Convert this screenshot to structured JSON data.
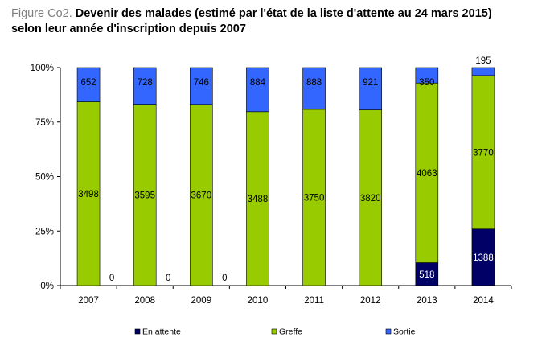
{
  "title_prefix": "Figure Co2.",
  "title_line1": " Devenir des malades (estimé par l'état de la liste d'attente au 24 mars 2015)",
  "title_line2": "selon leur année d'inscription depuis 2007",
  "chart_data": {
    "type": "bar",
    "stacked": true,
    "normalized": true,
    "categories": [
      "2007",
      "2008",
      "2009",
      "2010",
      "2011",
      "2012",
      "2013",
      "2014"
    ],
    "series": [
      {
        "name": "En attente",
        "color": "#000066",
        "values": [
          0,
          0,
          0,
          0,
          0,
          1,
          518,
          1388
        ]
      },
      {
        "name": "Greffe",
        "color": "#99cc00",
        "values": [
          3498,
          3595,
          3670,
          3488,
          3750,
          3820,
          4063,
          3770
        ]
      },
      {
        "name": "Sortie",
        "color": "#3366ff",
        "values": [
          652,
          728,
          746,
          884,
          888,
          921,
          350,
          195
        ]
      }
    ],
    "yticks": [
      "0%",
      "25%",
      "50%",
      "75%",
      "100%"
    ],
    "ylim": [
      0,
      100
    ],
    "legend_position": "bottom",
    "grid": false
  }
}
